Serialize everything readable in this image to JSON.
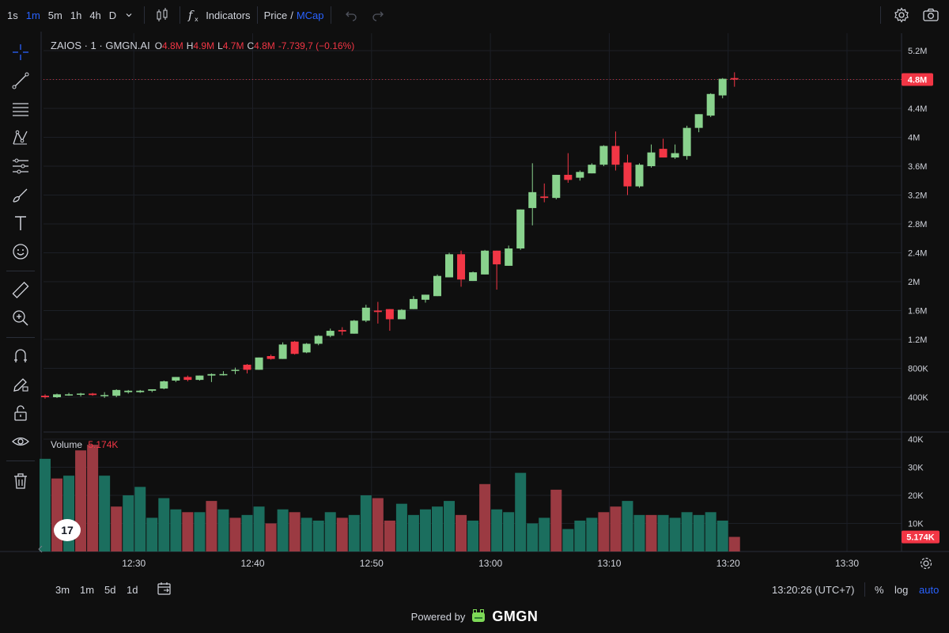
{
  "toolbar": {
    "timeframes": [
      "1s",
      "1m",
      "5m",
      "1h",
      "4h",
      "D"
    ],
    "active_timeframe": "1m",
    "indicators_label": "Indicators",
    "price_label": "Price",
    "slash": "/",
    "mcap_label": "MCap"
  },
  "legend": {
    "symbol": "ZAIOS · 1 · GMGN.AI",
    "o_label": "O",
    "o_value": "4.8M",
    "h_label": "H",
    "h_value": "4.9M",
    "l_label": "L",
    "l_value": "4.7M",
    "c_label": "C",
    "c_value": "4.8M",
    "change": "-7.739,7 (−0.16%)"
  },
  "volume_legend": {
    "label": "Volume",
    "value": "5.174K"
  },
  "price_badge": "4.8M",
  "volume_badge": "5.174K",
  "bottom": {
    "ranges": [
      "3m",
      "1m",
      "5d",
      "1d"
    ],
    "clock": "13:20:26 (UTC+7)",
    "percent": "%",
    "log": "log",
    "auto": "auto"
  },
  "powered": {
    "prefix": "Powered by",
    "brand": "GMGN"
  },
  "tv_logo": "17",
  "colors": {
    "up": "#89d28d",
    "down": "#f23645",
    "vol_up": "#1b6e5e",
    "vol_down": "#9b3a42",
    "accent": "#2962ff"
  },
  "chart_data": {
    "type": "candlestick",
    "symbol": "ZAIOS",
    "interval": "1m",
    "price_axis_ticks": [
      "5.2M",
      "4.8M",
      "4.4M",
      "4M",
      "3.6M",
      "3.2M",
      "2.8M",
      "2.4M",
      "2M",
      "1.6M",
      "1.2M",
      "800K",
      "400K"
    ],
    "price_axis_values": [
      5200000,
      4800000,
      4400000,
      4000000,
      3600000,
      3200000,
      2800000,
      2400000,
      2000000,
      1600000,
      1200000,
      800000,
      400000
    ],
    "volume_axis_ticks": [
      "40K",
      "30K",
      "20K",
      "10K"
    ],
    "volume_axis_values": [
      40000,
      30000,
      20000,
      10000
    ],
    "time_ticks": [
      "12:30",
      "12:40",
      "12:50",
      "13:00",
      "13:10",
      "13:20",
      "13:30"
    ],
    "time_tick_index": [
      7,
      17,
      27,
      37,
      47,
      57,
      67
    ],
    "last_price": 4800000,
    "candles": [
      {
        "o": 420000,
        "h": 440000,
        "l": 380000,
        "c": 400000
      },
      {
        "o": 400000,
        "h": 450000,
        "l": 390000,
        "c": 440000
      },
      {
        "o": 440000,
        "h": 460000,
        "l": 420000,
        "c": 440000
      },
      {
        "o": 440000,
        "h": 460000,
        "l": 410000,
        "c": 450000
      },
      {
        "o": 450000,
        "h": 460000,
        "l": 420000,
        "c": 430000
      },
      {
        "o": 430000,
        "h": 470000,
        "l": 390000,
        "c": 430000
      },
      {
        "o": 420000,
        "h": 510000,
        "l": 400000,
        "c": 500000
      },
      {
        "o": 470000,
        "h": 500000,
        "l": 450000,
        "c": 490000
      },
      {
        "o": 470000,
        "h": 500000,
        "l": 460000,
        "c": 490000
      },
      {
        "o": 490000,
        "h": 510000,
        "l": 470000,
        "c": 510000
      },
      {
        "o": 520000,
        "h": 630000,
        "l": 510000,
        "c": 620000
      },
      {
        "o": 630000,
        "h": 680000,
        "l": 610000,
        "c": 680000
      },
      {
        "o": 680000,
        "h": 700000,
        "l": 620000,
        "c": 640000
      },
      {
        "o": 640000,
        "h": 700000,
        "l": 630000,
        "c": 700000
      },
      {
        "o": 700000,
        "h": 730000,
        "l": 610000,
        "c": 720000
      },
      {
        "o": 710000,
        "h": 760000,
        "l": 700000,
        "c": 720000
      },
      {
        "o": 780000,
        "h": 810000,
        "l": 720000,
        "c": 780000
      },
      {
        "o": 850000,
        "h": 860000,
        "l": 730000,
        "c": 780000
      },
      {
        "o": 780000,
        "h": 950000,
        "l": 780000,
        "c": 950000
      },
      {
        "o": 970000,
        "h": 990000,
        "l": 920000,
        "c": 930000
      },
      {
        "o": 930000,
        "h": 1160000,
        "l": 930000,
        "c": 1130000
      },
      {
        "o": 1170000,
        "h": 1180000,
        "l": 990000,
        "c": 1000000
      },
      {
        "o": 1020000,
        "h": 1150000,
        "l": 1010000,
        "c": 1140000
      },
      {
        "o": 1140000,
        "h": 1260000,
        "l": 1120000,
        "c": 1250000
      },
      {
        "o": 1250000,
        "h": 1350000,
        "l": 1230000,
        "c": 1320000
      },
      {
        "o": 1330000,
        "h": 1370000,
        "l": 1260000,
        "c": 1310000
      },
      {
        "o": 1280000,
        "h": 1470000,
        "l": 1280000,
        "c": 1460000
      },
      {
        "o": 1460000,
        "h": 1680000,
        "l": 1440000,
        "c": 1640000
      },
      {
        "o": 1600000,
        "h": 1720000,
        "l": 1420000,
        "c": 1580000
      },
      {
        "o": 1620000,
        "h": 1620000,
        "l": 1320000,
        "c": 1480000
      },
      {
        "o": 1480000,
        "h": 1620000,
        "l": 1480000,
        "c": 1610000
      },
      {
        "o": 1620000,
        "h": 1800000,
        "l": 1620000,
        "c": 1760000
      },
      {
        "o": 1750000,
        "h": 1820000,
        "l": 1710000,
        "c": 1820000
      },
      {
        "o": 1800000,
        "h": 2100000,
        "l": 1800000,
        "c": 2080000
      },
      {
        "o": 2060000,
        "h": 2400000,
        "l": 2060000,
        "c": 2380000
      },
      {
        "o": 2380000,
        "h": 2430000,
        "l": 1930000,
        "c": 2030000
      },
      {
        "o": 2010000,
        "h": 2140000,
        "l": 2010000,
        "c": 2130000
      },
      {
        "o": 2100000,
        "h": 2440000,
        "l": 2100000,
        "c": 2430000
      },
      {
        "o": 2430000,
        "h": 2430000,
        "l": 1890000,
        "c": 2240000
      },
      {
        "o": 2220000,
        "h": 2500000,
        "l": 2220000,
        "c": 2460000
      },
      {
        "o": 2460000,
        "h": 3000000,
        "l": 2440000,
        "c": 3000000
      },
      {
        "o": 3020000,
        "h": 3640000,
        "l": 2780000,
        "c": 3240000
      },
      {
        "o": 3180000,
        "h": 3360000,
        "l": 3100000,
        "c": 3160000
      },
      {
        "o": 3160000,
        "h": 3480000,
        "l": 3140000,
        "c": 3480000
      },
      {
        "o": 3480000,
        "h": 3780000,
        "l": 3370000,
        "c": 3410000
      },
      {
        "o": 3440000,
        "h": 3540000,
        "l": 3400000,
        "c": 3520000
      },
      {
        "o": 3500000,
        "h": 3640000,
        "l": 3500000,
        "c": 3620000
      },
      {
        "o": 3620000,
        "h": 3890000,
        "l": 3600000,
        "c": 3880000
      },
      {
        "o": 3880000,
        "h": 4080000,
        "l": 3540000,
        "c": 3620000
      },
      {
        "o": 3650000,
        "h": 3760000,
        "l": 3200000,
        "c": 3320000
      },
      {
        "o": 3320000,
        "h": 3640000,
        "l": 3300000,
        "c": 3620000
      },
      {
        "o": 3600000,
        "h": 3900000,
        "l": 3580000,
        "c": 3790000
      },
      {
        "o": 3840000,
        "h": 3980000,
        "l": 3720000,
        "c": 3720000
      },
      {
        "o": 3720000,
        "h": 3900000,
        "l": 3700000,
        "c": 3780000
      },
      {
        "o": 3740000,
        "h": 4160000,
        "l": 3690000,
        "c": 4130000
      },
      {
        "o": 4130000,
        "h": 4320000,
        "l": 4070000,
        "c": 4320000
      },
      {
        "o": 4300000,
        "h": 4610000,
        "l": 4280000,
        "c": 4600000
      },
      {
        "o": 4580000,
        "h": 4820000,
        "l": 4540000,
        "c": 4810000
      },
      {
        "o": 4820000,
        "h": 4900000,
        "l": 4700000,
        "c": 4800000
      }
    ],
    "volume": [
      33000,
      26000,
      27000,
      36000,
      38000,
      27000,
      16000,
      20000,
      23000,
      12000,
      19000,
      15000,
      14000,
      14000,
      18000,
      15000,
      12000,
      13000,
      16000,
      10000,
      15000,
      14000,
      12000,
      11000,
      14000,
      12000,
      13000,
      20000,
      19000,
      11000,
      17000,
      13000,
      15000,
      16000,
      18000,
      13000,
      11000,
      24000,
      15000,
      14000,
      28000,
      10000,
      12000,
      22000,
      8000,
      11000,
      12000,
      14000,
      16000,
      18000,
      13000,
      13000,
      13000,
      12000,
      14000,
      13000,
      14000,
      11000,
      5200
    ],
    "volume_up": [
      true,
      false,
      true,
      false,
      false,
      true,
      false,
      true,
      true,
      true,
      true,
      true,
      false,
      true,
      false,
      true,
      false,
      true,
      true,
      false,
      true,
      false,
      true,
      true,
      true,
      false,
      true,
      true,
      false,
      false,
      true,
      true,
      true,
      true,
      true,
      false,
      true,
      false,
      true,
      true,
      true,
      true,
      true,
      false,
      true,
      true,
      true,
      false,
      false,
      true,
      true,
      false,
      true,
      true,
      true,
      true,
      true,
      true,
      false
    ]
  }
}
